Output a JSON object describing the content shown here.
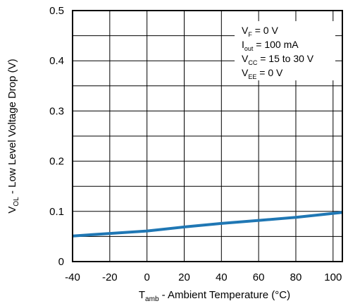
{
  "chart_data": {
    "type": "line",
    "xlabel": {
      "main": "T",
      "sub": "amb",
      "rest": " - Ambient Temperature (°C)"
    },
    "ylabel": {
      "main": "V",
      "sub": "OL",
      "rest": "  - Low Level Voltage Drop (V)"
    },
    "xlim": [
      -40,
      105
    ],
    "ylim": [
      0,
      0.5
    ],
    "x_ticks": [
      -40,
      -20,
      0,
      20,
      40,
      60,
      80,
      100
    ],
    "y_ticks": [
      0,
      0.1,
      0.2,
      0.3,
      0.4,
      0.5
    ],
    "x_tick_labels": [
      "-40",
      "-20",
      "0",
      "20",
      "40",
      "60",
      "80",
      "100"
    ],
    "y_tick_labels": [
      "0",
      "0.1",
      "0.2",
      "0.3",
      "0.4",
      "0.5"
    ],
    "grid": true,
    "series": [
      {
        "color": "#1f77b4",
        "x": [
          -40,
          -20,
          0,
          20,
          40,
          60,
          80,
          105
        ],
        "y": [
          0.051,
          0.056,
          0.061,
          0.069,
          0.076,
          0.082,
          0.088,
          0.098
        ]
      }
    ],
    "conditions": [
      {
        "main": "V",
        "sub": "F",
        "rest": " = 0 V"
      },
      {
        "main": "I",
        "sub": "out",
        "rest": " = 100 mA"
      },
      {
        "main": "V",
        "sub": "CC",
        "rest": " = 15 to 30 V"
      },
      {
        "main": "V",
        "sub": "EE",
        "rest": " = 0 V"
      }
    ]
  }
}
